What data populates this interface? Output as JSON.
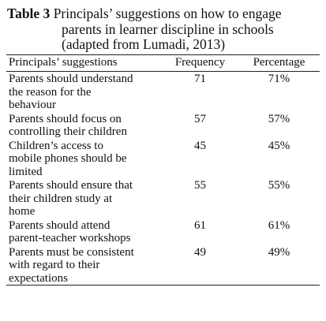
{
  "caption": {
    "label": "Table 3",
    "line1": "Principals’ suggestions on how to engage",
    "line2": "parents in learner discipline in schools",
    "line3": "(adapted from Lumadi, 2013)"
  },
  "table": {
    "headers": [
      "Principals’ suggestions",
      "Frequency",
      "Percentage"
    ],
    "rows": [
      {
        "suggestion": [
          "Parents should understand",
          "the reason for the",
          "behaviour"
        ],
        "frequency": "71",
        "percentage": "71%"
      },
      {
        "suggestion": [
          "Parents should focus on",
          "controlling their children"
        ],
        "frequency": "57",
        "percentage": "57%"
      },
      {
        "suggestion": [
          "Children’s access to",
          "mobile phones should be",
          "limited"
        ],
        "frequency": "45",
        "percentage": "45%"
      },
      {
        "suggestion": [
          "Parents should ensure that",
          "their children study at",
          "home"
        ],
        "frequency": "55",
        "percentage": "55%"
      },
      {
        "suggestion": [
          "Parents should attend",
          "parent-teacher  workshops"
        ],
        "frequency": "61",
        "percentage": "61%"
      },
      {
        "suggestion": [
          "Parents must be consistent",
          "with regard to their",
          "expectations"
        ],
        "frequency": "49",
        "percentage": "49%"
      }
    ]
  }
}
